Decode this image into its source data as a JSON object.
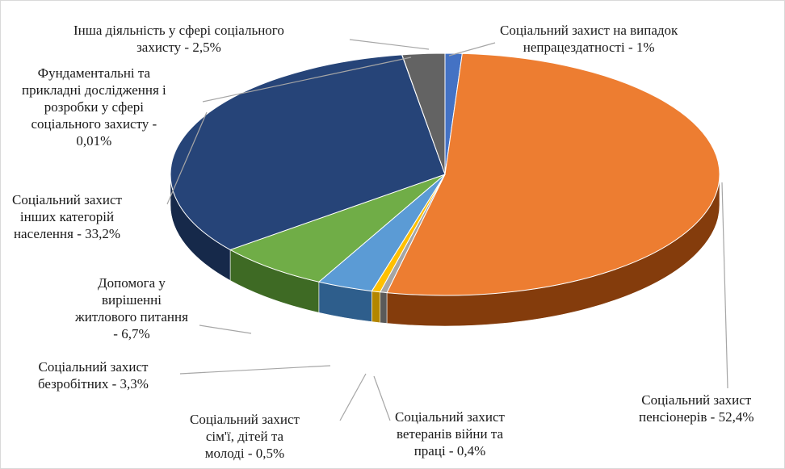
{
  "chart_data": {
    "type": "pie",
    "three_d": true,
    "title": "",
    "slices": [
      {
        "label_lines": [
          "Соціальний захист на випадок",
          "непрацездатності - 1%"
        ],
        "value": 1.0,
        "color": "#4472c4",
        "side_color": "#2f5597"
      },
      {
        "label_lines": [
          "Соціальний захист",
          "пенсіонерів - 52,4%"
        ],
        "value": 52.4,
        "color": "#ed7d31",
        "side_color": "#843c0c"
      },
      {
        "label_lines": [
          "Соціальний захист",
          "ветеранів війни та",
          "праці - 0,4%"
        ],
        "value": 0.4,
        "color": "#a5a5a5",
        "side_color": "#5a5a5a"
      },
      {
        "label_lines": [
          "Соціальний захист",
          "сім'ї, дітей та",
          "молоді - 0,5%"
        ],
        "value": 0.5,
        "color": "#ffc000",
        "side_color": "#b38600"
      },
      {
        "label_lines": [
          "Соціальний захист",
          "безробітних - 3,3%"
        ],
        "value": 3.3,
        "color": "#5b9bd5",
        "side_color": "#2e5e8c"
      },
      {
        "label_lines": [
          "Допомога у",
          "вирішенні",
          "житлового питання",
          "- 6,7%"
        ],
        "value": 6.7,
        "color": "#70ad47",
        "side_color": "#3e6a24"
      },
      {
        "label_lines": [
          "Соціальний захист",
          "інших категорій",
          "населення - 33,2%"
        ],
        "value": 33.2,
        "color": "#264478",
        "side_color": "#16294a"
      },
      {
        "label_lines": [
          "Фундаментальні та",
          "прикладні дослідження і",
          "розробки у сфері",
          "соціального захисту -",
          "0,01%"
        ],
        "value": 0.01,
        "color": "#9e480e",
        "side_color": "#5e2a08"
      },
      {
        "label_lines": [
          "Інша діяльність у сфері соціального",
          "захисту - 2,5%"
        ],
        "value": 2.5,
        "color": "#636363",
        "side_color": "#3a3a3a"
      }
    ]
  }
}
